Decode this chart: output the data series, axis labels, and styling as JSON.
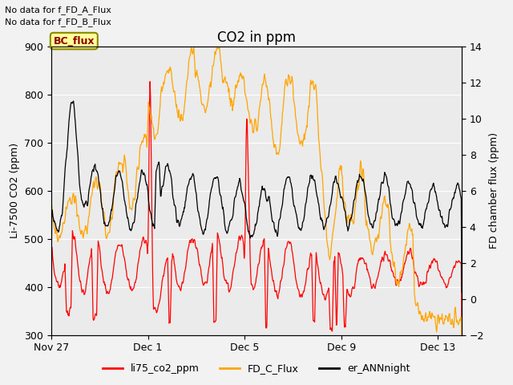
{
  "title": "CO2 in ppm",
  "ylabel_left": "Li-7500 CO2 (ppm)",
  "ylabel_right": "FD chamber flux (ppm)",
  "ylim_left": [
    300,
    900
  ],
  "ylim_right": [
    -2,
    14
  ],
  "annotation1": "No data for f_FD_A_Flux",
  "annotation2": "No data for f_FD_B_Flux",
  "bc_flux_label": "BC_flux",
  "legend_labels": [
    "li75_co2_ppm",
    "FD_C_Flux",
    "er_ANNnight"
  ],
  "line_colors": [
    "#ff0000",
    "#ffa500",
    "#000000"
  ],
  "bg_color": "#f2f2f2",
  "plot_bg": "#ebebeb",
  "title_fontsize": 12,
  "label_fontsize": 9,
  "tick_fontsize": 9,
  "xtick_labels": [
    "Nov 27",
    "Dec 1",
    "Dec 5",
    "Dec 9",
    "Dec 13"
  ],
  "xtick_positions_days": [
    0,
    4,
    8,
    12,
    16
  ]
}
